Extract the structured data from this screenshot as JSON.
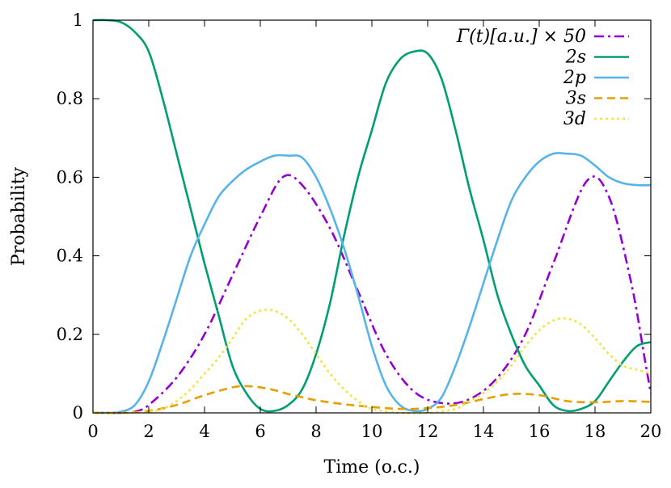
{
  "chart_data": {
    "type": "line",
    "xlabel": "Time (o.c.)",
    "ylabel": "Probability",
    "xlim": [
      0,
      20
    ],
    "ylim": [
      0,
      1
    ],
    "x_ticks": [
      "0",
      "2",
      "4",
      "6",
      "8",
      "10",
      "12",
      "14",
      "16",
      "18",
      "20"
    ],
    "y_ticks": [
      "0",
      "0.2",
      "0.4",
      "0.6",
      "0.8",
      "1"
    ],
    "grid": false,
    "legend_position": "top-right",
    "series": [
      {
        "name": "Γ(t)[a.u.] × 50",
        "color": "#9400d3",
        "dash": "dash-dot",
        "x": [
          0,
          1,
          1.5,
          2,
          3,
          4,
          5,
          6,
          6.8,
          7.5,
          8.5,
          9.5,
          10.5,
          11.5,
          12.5,
          13.5,
          14.5,
          15.5,
          16.5,
          17.7,
          18.5,
          19.3,
          19.8,
          20
        ],
        "y": [
          0.0,
          0.0,
          0.003,
          0.02,
          0.09,
          0.2,
          0.35,
          0.5,
          0.6,
          0.58,
          0.47,
          0.31,
          0.15,
          0.055,
          0.025,
          0.035,
          0.09,
          0.2,
          0.38,
          0.59,
          0.55,
          0.33,
          0.13,
          0.05
        ]
      },
      {
        "name": "2s",
        "color": "#009e73",
        "dash": "solid",
        "x": [
          0,
          0.5,
          1,
          1.5,
          2,
          2.5,
          3,
          3.5,
          4,
          4.5,
          5,
          5.5,
          6,
          6.5,
          7,
          7.5,
          8,
          8.5,
          9,
          9.5,
          10,
          10.5,
          11,
          11.5,
          12,
          12.5,
          13,
          13.5,
          14,
          14.5,
          15,
          15.5,
          16,
          16.5,
          17,
          17.5,
          18,
          18.5,
          19,
          19.5,
          20
        ],
        "y": [
          1.0,
          1.0,
          0.995,
          0.97,
          0.92,
          0.8,
          0.66,
          0.52,
          0.38,
          0.25,
          0.12,
          0.05,
          0.01,
          0.005,
          0.02,
          0.06,
          0.15,
          0.28,
          0.45,
          0.6,
          0.72,
          0.84,
          0.9,
          0.92,
          0.915,
          0.85,
          0.72,
          0.57,
          0.44,
          0.3,
          0.2,
          0.12,
          0.07,
          0.02,
          0.005,
          0.01,
          0.03,
          0.08,
          0.13,
          0.17,
          0.18
        ]
      },
      {
        "name": "2p",
        "color": "#56b4e9",
        "dash": "solid",
        "x": [
          0,
          0.5,
          1,
          1.5,
          2,
          2.5,
          3,
          3.5,
          4,
          4.5,
          5,
          5.5,
          6,
          6.5,
          7,
          7.5,
          8,
          8.5,
          9,
          9.5,
          10,
          10.5,
          11,
          11.5,
          12,
          12.5,
          13,
          13.5,
          14,
          14.5,
          15,
          15.5,
          16,
          16.5,
          17,
          17.5,
          18,
          18.5,
          19,
          19.5,
          20
        ],
        "y": [
          0.0,
          0.0,
          0.003,
          0.02,
          0.08,
          0.18,
          0.29,
          0.4,
          0.48,
          0.55,
          0.59,
          0.62,
          0.64,
          0.655,
          0.655,
          0.65,
          0.6,
          0.52,
          0.42,
          0.3,
          0.17,
          0.07,
          0.02,
          0.005,
          0.01,
          0.04,
          0.12,
          0.22,
          0.33,
          0.44,
          0.54,
          0.6,
          0.64,
          0.66,
          0.66,
          0.655,
          0.63,
          0.6,
          0.585,
          0.58,
          0.58
        ]
      },
      {
        "name": "3s",
        "color": "#e69f00",
        "dash": "dashed",
        "x": [
          0,
          1,
          2,
          3,
          4,
          5,
          5.5,
          6,
          6.5,
          7,
          7.5,
          8,
          9,
          10,
          11,
          12,
          13,
          14,
          15,
          16,
          17,
          18,
          19,
          20
        ],
        "y": [
          0.0,
          0.0,
          0.005,
          0.02,
          0.045,
          0.065,
          0.068,
          0.065,
          0.058,
          0.048,
          0.04,
          0.032,
          0.022,
          0.015,
          0.01,
          0.012,
          0.02,
          0.035,
          0.048,
          0.045,
          0.03,
          0.027,
          0.03,
          0.028
        ]
      },
      {
        "name": "3d",
        "color": "#f0e442",
        "dash": "dotted",
        "x": [
          0,
          1,
          2,
          2.5,
          3,
          3.5,
          4,
          4.5,
          5,
          5.5,
          6,
          6.5,
          7,
          7.5,
          8,
          8.5,
          9,
          9.5,
          10,
          11,
          12,
          13,
          13.5,
          14,
          14.5,
          15,
          15.5,
          16,
          16.5,
          17,
          17.5,
          18,
          18.5,
          19,
          19.5,
          20
        ],
        "y": [
          0.0,
          0.0,
          0.003,
          0.01,
          0.03,
          0.06,
          0.1,
          0.14,
          0.19,
          0.24,
          0.26,
          0.26,
          0.24,
          0.2,
          0.15,
          0.1,
          0.06,
          0.03,
          0.01,
          0.0,
          0.0,
          0.01,
          0.03,
          0.05,
          0.08,
          0.12,
          0.17,
          0.21,
          0.235,
          0.24,
          0.225,
          0.19,
          0.15,
          0.12,
          0.11,
          0.1
        ]
      }
    ]
  }
}
